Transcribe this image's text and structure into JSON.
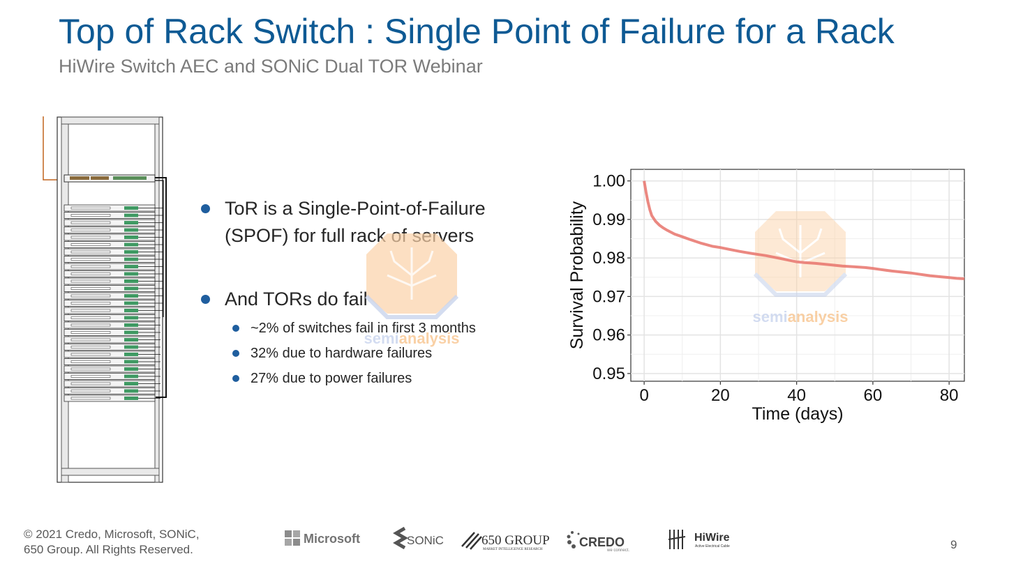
{
  "slide": {
    "title": "Top of Rack Switch : Single Point of Failure for a Rack",
    "subtitle": "HiWire Switch AEC and SONiC Dual TOR Webinar",
    "page_number": "9",
    "footer": [
      "© 2021 Credo, Microsoft, SONiC,",
      "650 Group.  All Rights Reserved."
    ]
  },
  "bullets": [
    {
      "lines": [
        "ToR is a Single-Point-of-Failure",
        "(SPOF) for full rack of servers"
      ],
      "subs": []
    },
    {
      "lines": [
        "And TORs do fail"
      ],
      "subs": [
        "~2% of switches fail in first 3 months",
        "32% due to hardware failures",
        "27% due to power failures"
      ]
    }
  ],
  "watermark": {
    "prefix": "semi",
    "suffix": "analysis"
  },
  "logos": {
    "microsoft": "Microsoft",
    "sonic": "SONiC",
    "group650": "650 GROUP",
    "group650_tag": "MARKET INTELLIGENCE RESEARCH",
    "credo": "CREDO",
    "credo_tag": "we connect.",
    "hiwire": "HiWire",
    "hiwire_tag": "Active Electrical Cable"
  },
  "colors": {
    "title": "#0e5a94",
    "bullet": "#1f5e9e",
    "curve": "#e8736b",
    "watermark": "#f6b26b"
  },
  "chart_data": {
    "type": "line",
    "title": "",
    "xlabel": "Time (days)",
    "ylabel": "Survival Probability",
    "xlim": [
      -3.5,
      84
    ],
    "ylim": [
      0.948,
      1.003
    ],
    "xticks": [
      0,
      20,
      40,
      60,
      80
    ],
    "xtick_labels": [
      "0",
      "20",
      "40",
      "60",
      "80"
    ],
    "yticks": [
      0.95,
      0.96,
      0.97,
      0.98,
      0.99,
      1.0
    ],
    "ytick_labels": [
      "0.95",
      "0.96",
      "0.97",
      "0.98",
      "0.99",
      "1.00"
    ],
    "grid": true,
    "series": [
      {
        "x": [
          0,
          0.5,
          1,
          1.5,
          2,
          3,
          4,
          5,
          6,
          8,
          10,
          12,
          15,
          18,
          20,
          22,
          25,
          28,
          30,
          32,
          35,
          38,
          40,
          42,
          45,
          48,
          50,
          52,
          55,
          58,
          60,
          62,
          65,
          68,
          70,
          72,
          75,
          78,
          80,
          82,
          84
        ],
        "y": [
          1.0,
          0.997,
          0.9945,
          0.9925,
          0.991,
          0.9895,
          0.9885,
          0.9878,
          0.9872,
          0.9862,
          0.9855,
          0.9848,
          0.9838,
          0.983,
          0.9827,
          0.9823,
          0.9817,
          0.9812,
          0.9809,
          0.9806,
          0.98,
          0.9794,
          0.979,
          0.9788,
          0.9786,
          0.9783,
          0.9781,
          0.9779,
          0.9777,
          0.9775,
          0.9773,
          0.977,
          0.9766,
          0.9763,
          0.9761,
          0.9758,
          0.9754,
          0.9751,
          0.9749,
          0.9747,
          0.9746
        ]
      }
    ]
  }
}
